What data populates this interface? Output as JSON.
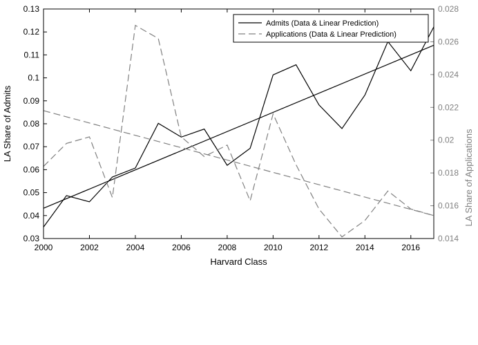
{
  "chart_data": {
    "type": "line",
    "xlabel": "Harvard Class",
    "ylabel_left": "LA Share of Admits",
    "ylabel_right": "LA Share of Applications",
    "x": [
      2000,
      2001,
      2002,
      2003,
      2004,
      2005,
      2006,
      2007,
      2008,
      2009,
      2010,
      2011,
      2012,
      2013,
      2014,
      2015,
      2016,
      2017
    ],
    "xlim": [
      2000,
      2017
    ],
    "ylim_left": [
      0.03,
      0.13
    ],
    "ylim_right": [
      0.014,
      0.028
    ],
    "xticks": [
      2000,
      2002,
      2004,
      2006,
      2008,
      2010,
      2012,
      2014,
      2016
    ],
    "xtick_labels": [
      "2000",
      "2002",
      "2004",
      "2006",
      "2008",
      "2010",
      "2012",
      "2014",
      "2016"
    ],
    "yticks_left": [
      0.03,
      0.04,
      0.05,
      0.06,
      0.07,
      0.08,
      0.09,
      0.1,
      0.11,
      0.12,
      0.13
    ],
    "ytick_labels_left": [
      "0.03",
      "0.04",
      "0.05",
      "0.06",
      "0.07",
      "0.08",
      "0.09",
      "0.1",
      "0.11",
      "0.12",
      "0.13"
    ],
    "yticks_right": [
      0.014,
      0.016,
      0.018,
      0.02,
      0.022,
      0.024,
      0.026,
      0.028
    ],
    "ytick_labels_right": [
      "0.014",
      "0.016",
      "0.018",
      "0.02",
      "0.022",
      "0.024",
      "0.026",
      "0.028"
    ],
    "legend_position": "top-right",
    "series": [
      {
        "name": "Admits (Data & Linear Prediction)",
        "axis": "left",
        "color": "#000000",
        "style": "solid",
        "data": [
          0.035,
          0.0487,
          0.046,
          0.0568,
          0.0607,
          0.0802,
          0.0742,
          0.0777,
          0.0619,
          0.0693,
          0.1013,
          0.1057,
          0.0882,
          0.0779,
          0.0925,
          0.1158,
          0.1031,
          0.1222
        ],
        "fit": [
          0.0432,
          0.1142
        ]
      },
      {
        "name": "Applications (Data & Linear Prediction)",
        "axis": "right",
        "color": "#808080",
        "style": "dashed",
        "data": [
          0.0184,
          0.0198,
          0.0202,
          0.0165,
          0.027,
          0.0262,
          0.0202,
          0.019,
          0.0197,
          0.0163,
          0.0216,
          0.0185,
          0.0158,
          0.0141,
          0.0151,
          0.0169,
          0.0158,
          0.0154
        ],
        "fit": [
          0.0218,
          0.0154
        ]
      }
    ]
  }
}
